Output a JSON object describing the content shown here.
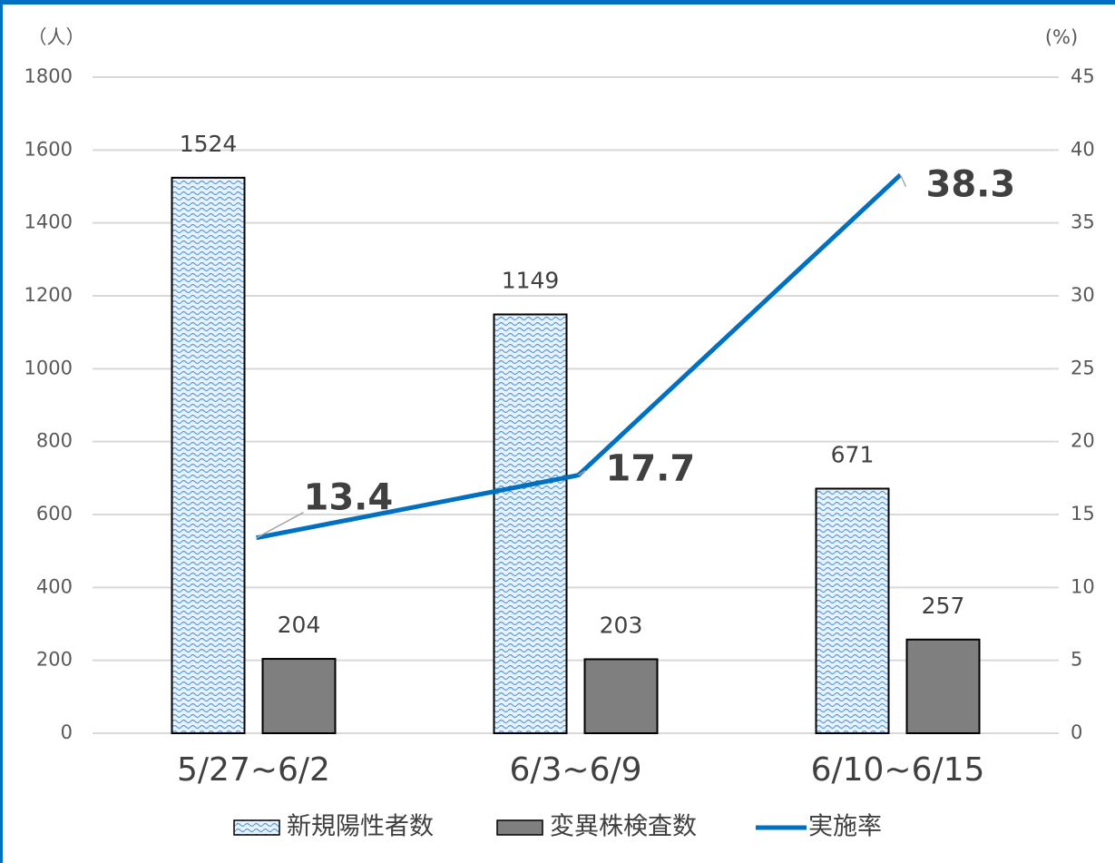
{
  "chart_data": {
    "type": "bar",
    "y_label": "（人）",
    "y2_label": "(%)",
    "categories": [
      "5/27~6/2",
      "6/3~6/9",
      "6/10~6/15"
    ],
    "series": [
      {
        "name": "新規陽性者数",
        "color": "#2e75b6",
        "values": [
          1524,
          1149,
          671
        ]
      },
      {
        "name": "変異株検査数",
        "color": "#7f7f7f",
        "values": [
          204,
          203,
          257
        ]
      },
      {
        "name": "実施率",
        "type": "line",
        "axis": "y2",
        "color": "#0070c0",
        "values": [
          13.4,
          17.7,
          38.3
        ]
      }
    ],
    "ylim": [
      0,
      1800
    ],
    "yticks": [
      0,
      200,
      400,
      600,
      800,
      1000,
      1200,
      1400,
      1600,
      1800
    ],
    "y2lim": [
      0,
      45
    ],
    "y2ticks": [
      0,
      5,
      10,
      15,
      20,
      25,
      30,
      35,
      40,
      45
    ],
    "grid": true,
    "legend": "bottom"
  }
}
